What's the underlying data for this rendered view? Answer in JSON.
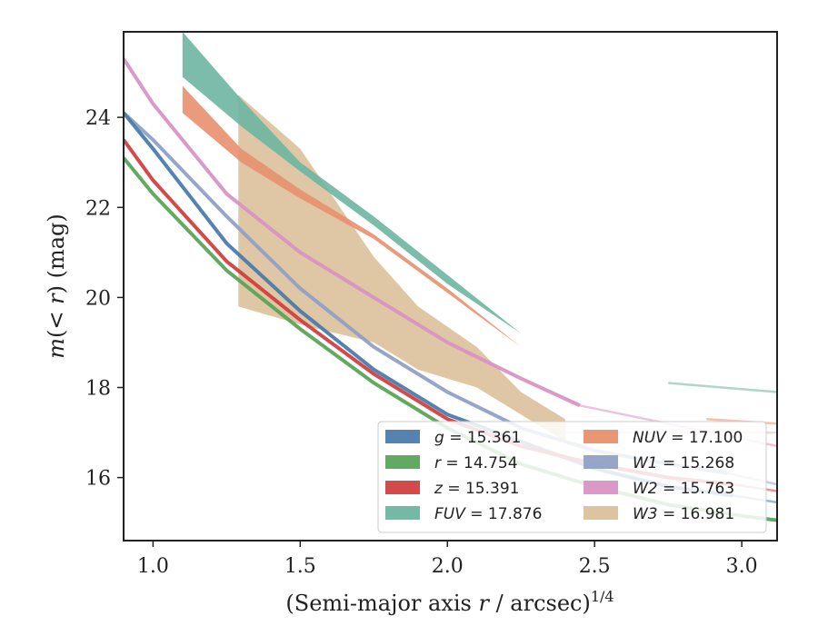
{
  "chart_data": {
    "type": "line",
    "xlabel_main": "(Semi-major axis r / arcsec)",
    "xlabel_sup": "1/4",
    "ylabel": "m(< r) (mag)",
    "xlim": [
      0.9,
      3.12
    ],
    "ylim": [
      25.9,
      14.6
    ],
    "xticks": [
      1.0,
      1.5,
      2.0,
      2.5,
      3.0
    ],
    "xtick_labels": [
      "1.0",
      "1.5",
      "2.0",
      "2.5",
      "3.0"
    ],
    "yticks": [
      16,
      18,
      20,
      22,
      24
    ],
    "ytick_labels": [
      "16",
      "18",
      "20",
      "22",
      "24"
    ],
    "grid": false,
    "legend_position": "bottom-right",
    "series": [
      {
        "label": "g = 15.361",
        "color": "#4c7bab",
        "x": [
          0.9,
          1.0,
          1.25,
          1.5,
          1.75,
          2.0,
          2.25,
          2.5,
          2.75,
          2.97
        ],
        "y": [
          24.1,
          23.3,
          21.2,
          19.7,
          18.4,
          17.4,
          16.8,
          16.2,
          15.8,
          15.6
        ],
        "x_ext": [
          2.97,
          3.12
        ],
        "y_ext": [
          15.6,
          15.45
        ]
      },
      {
        "label": "r = 14.754",
        "color": "#5aa45a",
        "x": [
          0.9,
          1.0,
          1.25,
          1.5,
          1.75,
          2.0,
          2.25,
          2.5,
          2.75,
          3.0,
          3.12
        ],
        "y": [
          23.1,
          22.3,
          20.6,
          19.3,
          18.1,
          17.1,
          16.3,
          15.8,
          15.4,
          15.15,
          15.05
        ]
      },
      {
        "label": "z = 15.391",
        "color": "#d04040",
        "x": [
          0.9,
          1.0,
          1.25,
          1.5,
          1.75,
          2.0,
          2.25,
          2.5,
          2.75,
          2.97
        ],
        "y": [
          23.5,
          22.6,
          20.8,
          19.5,
          18.3,
          17.3,
          16.7,
          16.3,
          16.0,
          15.85
        ],
        "x_ext": [
          2.97,
          3.12
        ],
        "y_ext": [
          15.85,
          15.7
        ]
      },
      {
        "label": "FUV = 17.876",
        "color": "#6db5a1",
        "x": [
          1.1,
          1.3,
          1.5,
          1.75,
          2.0,
          2.25,
          2.5,
          2.75
        ],
        "y_low": [
          25.9,
          24.4,
          23.0,
          21.8,
          20.5,
          19.2,
          18.6,
          18.1
        ],
        "y_high": [
          24.9,
          23.8,
          22.8,
          21.6,
          20.3,
          19.2,
          18.6,
          18.1
        ],
        "x_ext": [
          2.75,
          3.12
        ],
        "y_ext": [
          18.1,
          17.9
        ]
      },
      {
        "label": "NUV = 17.100",
        "color": "#e8906e",
        "x": [
          1.1,
          1.3,
          1.5,
          1.75,
          2.0,
          2.25,
          2.5,
          2.75,
          2.88
        ],
        "y_low": [
          24.7,
          23.3,
          22.4,
          21.4,
          20.2,
          18.9,
          18.1,
          17.6,
          17.3
        ],
        "y_high": [
          24.1,
          23.0,
          22.2,
          21.3,
          20.1,
          18.9,
          18.1,
          17.6,
          17.3
        ],
        "x_ext": [
          2.88,
          3.12
        ],
        "y_ext": [
          17.3,
          17.2
        ]
      },
      {
        "label": "W1 = 15.268",
        "color": "#8fa1c6",
        "x": [
          0.9,
          1.0,
          1.25,
          1.5,
          1.75,
          2.0,
          2.25,
          2.5,
          2.75,
          2.95
        ],
        "y": [
          24.1,
          23.5,
          21.8,
          20.2,
          18.9,
          17.9,
          17.1,
          16.6,
          16.3,
          16.1
        ],
        "x_ext": [
          2.95,
          3.12
        ],
        "y_ext": [
          16.1,
          15.85
        ]
      },
      {
        "label": "W2 = 15.763",
        "color": "#d994c4",
        "x": [
          0.9,
          1.0,
          1.25,
          1.5,
          1.75,
          2.0,
          2.25,
          2.45
        ],
        "y": [
          25.3,
          24.3,
          22.3,
          21.0,
          20.0,
          19.0,
          18.2,
          17.6
        ],
        "x_ext": [
          2.45,
          3.12
        ],
        "y_ext": [
          17.6,
          16.7
        ]
      },
      {
        "label": "W3 = 16.981",
        "color": "#dcc09a",
        "x": [
          1.29,
          1.5,
          1.75,
          1.9,
          2.1,
          2.25,
          2.4
        ],
        "y_low": [
          24.5,
          23.3,
          20.9,
          19.8,
          18.9,
          17.9,
          17.3
        ],
        "y_high": [
          19.8,
          19.4,
          19.0,
          18.4,
          18.0,
          17.4,
          16.8
        ],
        "x_ext": [
          2.4,
          3.12
        ],
        "y_ext": [
          17.0,
          17.0
        ]
      }
    ]
  }
}
